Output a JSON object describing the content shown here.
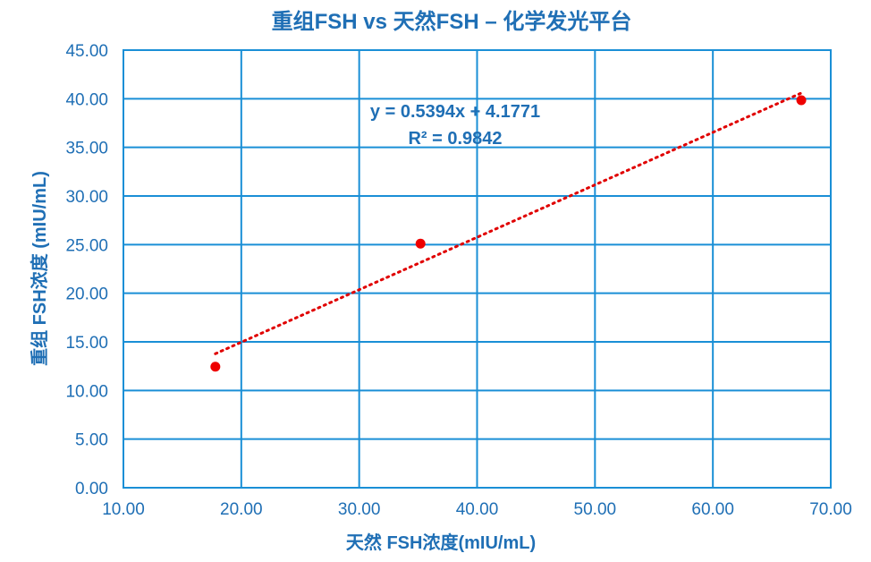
{
  "chart_data": {
    "type": "scatter",
    "title": "重组FSH vs 天然FSH – 化学发光平台",
    "xlabel": "天然 FSH浓度(mIU/mL)",
    "ylabel": "重组 FSH浓度 (mIU/mL)",
    "xlim": [
      10,
      70
    ],
    "ylim": [
      0,
      45
    ],
    "x_ticks": [
      "10.00",
      "20.00",
      "30.00",
      "40.00",
      "50.00",
      "60.00",
      "70.00"
    ],
    "y_ticks": [
      "0.00",
      "5.00",
      "10.00",
      "15.00",
      "20.00",
      "25.00",
      "30.00",
      "35.00",
      "40.00",
      "45.00"
    ],
    "grid": true,
    "legend": "none",
    "series": [
      {
        "points": [
          {
            "x": 17.8,
            "y": 12.45
          },
          {
            "x": 35.2,
            "y": 25.1
          },
          {
            "x": 67.5,
            "y": 39.85
          }
        ],
        "color": "#ee0000"
      }
    ],
    "trendline": {
      "type": "linear",
      "slope": 0.5394,
      "intercept": 4.1771,
      "x_range": [
        17.8,
        67.5
      ],
      "color": "#e00000",
      "style": "dotted",
      "equation_label": "y = 0.5394x + 4.1771",
      "r2_label": "R² = 0.9842"
    },
    "colors": {
      "text": "#1f6fb5",
      "grid": "#1a8fd6",
      "points": "#ee0000"
    }
  }
}
